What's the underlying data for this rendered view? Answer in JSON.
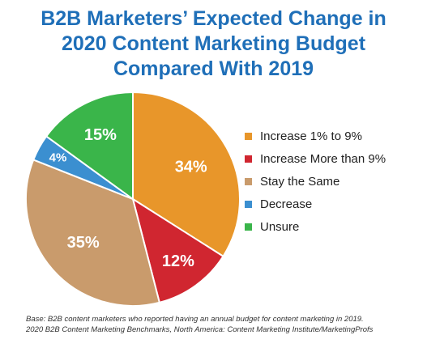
{
  "chart_data": {
    "type": "pie",
    "title_lines": [
      "B2B Marketers’ Expected Change in",
      "2020 Content Marketing Budget",
      "Compared With 2019"
    ],
    "slices": [
      {
        "name": "Increase 1% to 9%",
        "value": 34,
        "label": "34%",
        "color": "#e8962a"
      },
      {
        "name": "Increase More than 9%",
        "value": 12,
        "label": "12%",
        "color": "#d02630"
      },
      {
        "name": "Stay the Same",
        "value": 35,
        "label": "35%",
        "color": "#c99b6c"
      },
      {
        "name": "Decrease",
        "value": 4,
        "label": "4%",
        "color": "#3b8fd0"
      },
      {
        "name": "Unsure",
        "value": 15,
        "label": "15%",
        "color": "#3ab54a"
      }
    ],
    "legend_position": "right"
  },
  "footnote": {
    "base": "Base: B2B content marketers who reported having an annual budget for content marketing in 2019.",
    "source": "2020 B2B Content Marketing Benchmarks, North America: Content Marketing Institute/MarketingProfs"
  }
}
